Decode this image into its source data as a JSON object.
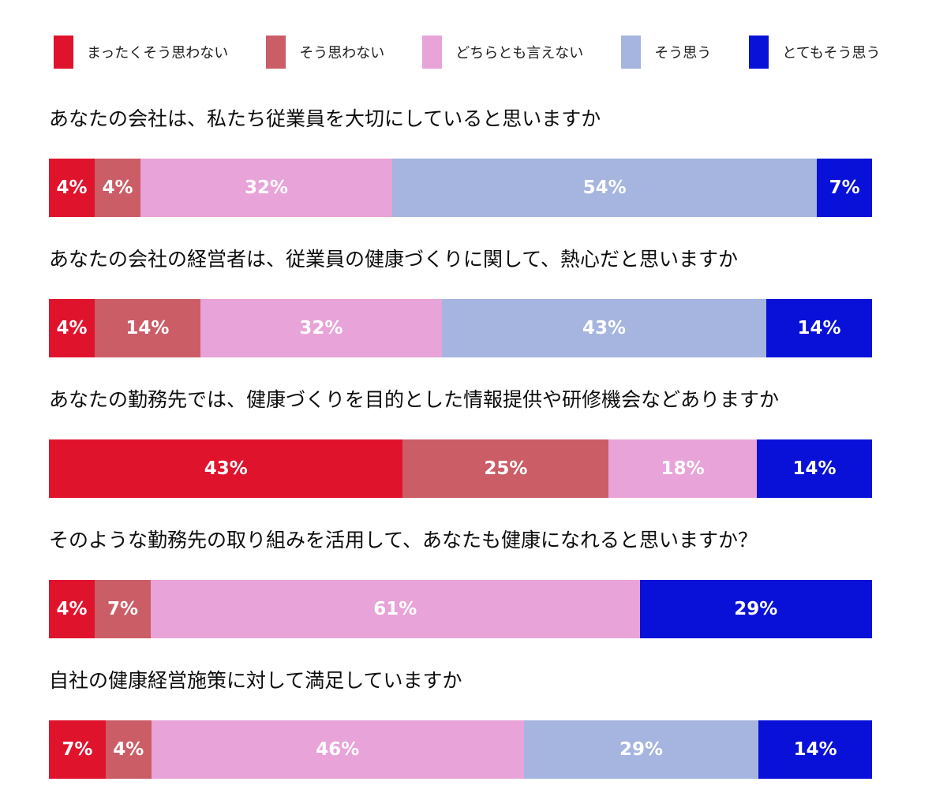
{
  "legend": {
    "items": [
      {
        "label": "まったくそう思わない",
        "color": "#E0132D"
      },
      {
        "label": "そう思わない",
        "color": "#CB5D66"
      },
      {
        "label": "どちらとも言えない",
        "color": "#E8A3D8"
      },
      {
        "label": "そう思う",
        "color": "#A5B5DF"
      },
      {
        "label": "とてもそう思う",
        "color": "#0911D8"
      }
    ]
  },
  "chart_data": {
    "type": "bar",
    "variant": "horizontal-stacked-percent",
    "legend_position": "top",
    "grid": false,
    "categories": [
      "まったくそう思わない",
      "そう思わない",
      "どちらとも言えない",
      "そう思う",
      "とてもそう思う"
    ],
    "colors": [
      "#E0132D",
      "#CB5D66",
      "#E8A3D8",
      "#A5B5DF",
      "#0911D8"
    ],
    "questions": [
      {
        "title": "あなたの会社は、私たち従業員を大切にしていると思いますか",
        "values": [
          4,
          4,
          32,
          54,
          7
        ],
        "labels": [
          "4%",
          "4%",
          "32%",
          "54%",
          "7%"
        ]
      },
      {
        "title": "あなたの会社の経営者は、従業員の健康づくりに関して、熱心だと思いますか",
        "values": [
          4,
          14,
          32,
          43,
          14
        ],
        "labels": [
          "4%",
          "14%",
          "32%",
          "43%",
          "14%"
        ]
      },
      {
        "title": "あなたの勤務先では、健康づくりを目的とした情報提供や研修機会などありますか",
        "values": [
          43,
          25,
          18,
          0,
          14
        ],
        "labels": [
          "43%",
          "25%",
          "18%",
          "",
          "14%"
        ]
      },
      {
        "title": "そのような勤務先の取り組みを活用して、あなたも健康になれると思いますか？",
        "values": [
          4,
          7,
          61,
          0,
          29
        ],
        "labels": [
          "4%",
          "7%",
          "61%",
          "",
          "29%"
        ]
      },
      {
        "title": "自社の健康経営施策に対して満足していますか",
        "values": [
          7,
          4,
          46,
          29,
          14
        ],
        "labels": [
          "7%",
          "4%",
          "46%",
          "29%",
          "14%"
        ]
      }
    ]
  }
}
